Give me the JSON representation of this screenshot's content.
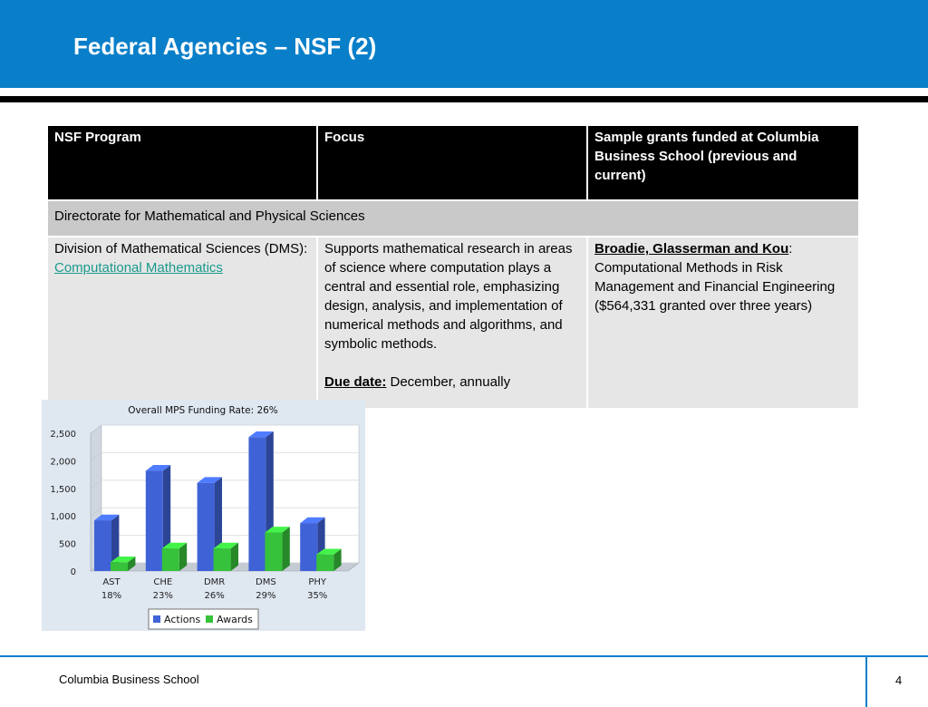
{
  "slide": {
    "title": "Federal Agencies – NSF (2)",
    "colors": {
      "header_bg": "#0a7fc9",
      "table_header_bg": "#000000",
      "directorate_bg": "#c9c9c9",
      "body_bg": "#e6e6e6",
      "link": "#1a9a8c"
    }
  },
  "table": {
    "headers": [
      "NSF Program",
      "Focus",
      "Sample grants funded at Columbia Business School (previous and current)"
    ],
    "directorate": "Directorate for Mathematical  and Physical Sciences",
    "program_prefix": "Division of Mathematical Sciences (DMS): ",
    "program_link": "Computational Mathematics",
    "focus_text": "Supports mathematical research in areas of science where computation plays a central and essential role, emphasizing design, analysis, and implementation of numerical methods and algorithms, and symbolic methods.",
    "due_label": "Due date:",
    "due_value": " December, annually",
    "grant_names": "Broadie, Glasserman and Kou",
    "grant_colon": ":",
    "grant_text": " Computational Methods in Risk Management and Financial Engineering ($564,331 granted over three years)"
  },
  "chart_data": {
    "type": "bar",
    "title": "Overall MPS Funding Rate: 26%",
    "categories": [
      "AST",
      "CHE",
      "DMR",
      "DMS",
      "PHY"
    ],
    "category_rates": [
      "18%",
      "23%",
      "26%",
      "29%",
      "35%"
    ],
    "series": [
      {
        "name": "Actions",
        "values": [
          920,
          1820,
          1600,
          2430,
          870
        ],
        "color": "#3f63d6"
      },
      {
        "name": "Awards",
        "values": [
          160,
          410,
          410,
          700,
          300
        ],
        "color": "#36c23a"
      }
    ],
    "ylim": [
      0,
      2500
    ],
    "yticks": [
      "0",
      "500",
      "1,000",
      "1,500",
      "2,000",
      "2,500"
    ],
    "ytick_values": [
      0,
      500,
      1000,
      1500,
      2000,
      2500
    ],
    "legend": "bottom"
  },
  "footer": {
    "school": "Columbia Business School",
    "page": "4"
  }
}
